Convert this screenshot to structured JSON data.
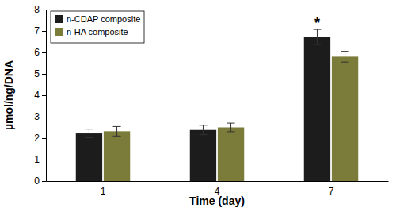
{
  "chart_data": {
    "type": "bar",
    "x_label": "Time (day)",
    "y_label": "µmol/ng/DNA",
    "categories": [
      "1",
      "4",
      "7"
    ],
    "series": [
      {
        "name": "n-CDAP composite",
        "color": "#1c1c1c",
        "values": [
          2.22,
          2.38,
          6.72
        ],
        "errors": [
          0.2,
          0.22,
          0.35
        ]
      },
      {
        "name": "n-HA composite",
        "color": "#7b7b3a",
        "values": [
          2.32,
          2.5,
          5.8
        ],
        "errors": [
          0.22,
          0.2,
          0.25
        ]
      }
    ],
    "ylim": [
      0,
      8
    ],
    "yticks": [
      0,
      1,
      2,
      3,
      4,
      5,
      6,
      7,
      8
    ],
    "grid": false,
    "legend": "upper left",
    "annotations": [
      {
        "text": "*",
        "x": "7",
        "series": "n-CDAP composite"
      }
    ]
  }
}
